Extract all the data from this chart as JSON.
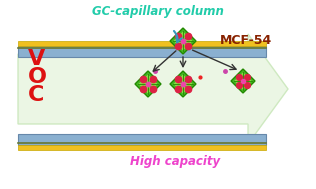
{
  "bg_color": "#ffffff",
  "arrow_color": "#d4edcc",
  "arrow_edge": "#c8e6b8",
  "tube_top_color": "#8ab0d0",
  "tube_bottom_color": "#8ab0d0",
  "tube_yellow": "#f0c020",
  "tube_green_line": "#88aa44",
  "title_text": "GC-capillary column",
  "title_color": "#22ccaa",
  "bottom_text": "High capacity",
  "bottom_color": "#ee44cc",
  "voc_text": "V\nO\nC",
  "voc_color": "#dd1111",
  "mcf_text": "MCF-54",
  "mcf_color": "#882200",
  "arrow_body_color": "#e8f5e0",
  "fig_width": 3.16,
  "fig_height": 1.89
}
